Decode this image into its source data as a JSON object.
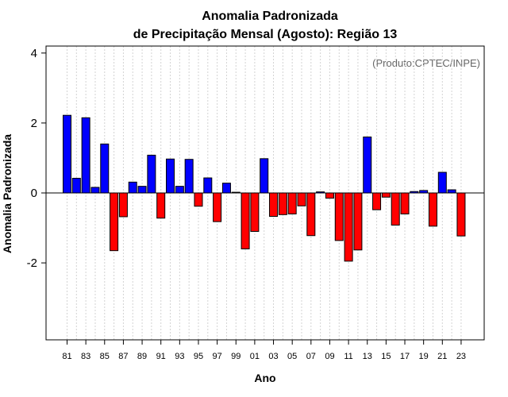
{
  "chart_data": {
    "type": "bar",
    "title": [
      "Anomalia Padronizada",
      "de Precipitação Mensal (Agosto): Região 13"
    ],
    "annotation": "(Produto:CPTEC/INPE)",
    "xlabel": "Ano",
    "ylabel": "Anomalia Padronizada",
    "ylim": [
      -4.2,
      4.2
    ],
    "yticks": [
      -2,
      0,
      2,
      4
    ],
    "ytick_labels": [
      "-2",
      "0",
      "2",
      "4"
    ],
    "categories": [
      "1981",
      "1982",
      "1983",
      "1984",
      "1985",
      "1986",
      "1987",
      "1988",
      "1989",
      "1990",
      "1991",
      "1992",
      "1993",
      "1994",
      "1995",
      "1996",
      "1997",
      "1998",
      "1999",
      "2000",
      "2001",
      "2002",
      "2003",
      "2004",
      "2005",
      "2006",
      "2007",
      "2008",
      "2009",
      "2010",
      "2011",
      "2012",
      "2013",
      "2014",
      "2015",
      "2016",
      "2017",
      "2018",
      "2019",
      "2020",
      "2021",
      "2022",
      "2023"
    ],
    "values": [
      2.22,
      0.42,
      2.15,
      0.16,
      1.4,
      -1.65,
      -0.68,
      0.31,
      0.19,
      1.08,
      -0.72,
      0.97,
      0.19,
      0.96,
      -0.38,
      0.43,
      -0.82,
      0.28,
      0.02,
      -1.6,
      -1.1,
      0.98,
      -0.67,
      -0.62,
      -0.6,
      -0.37,
      -1.22,
      0.03,
      -0.15,
      -1.36,
      -1.95,
      -1.63,
      1.6,
      -0.48,
      -0.12,
      -0.92,
      -0.6,
      0.04,
      0.07,
      -0.95,
      0.59,
      0.09,
      -1.23
    ],
    "xtick_labels": [
      "81",
      "83",
      "85",
      "87",
      "89",
      "91",
      "93",
      "95",
      "97",
      "99",
      "01",
      "03",
      "05",
      "07",
      "09",
      "11",
      "13",
      "15",
      "17",
      "19",
      "21",
      "23"
    ],
    "colors": {
      "positive": "#0000ff",
      "negative": "#ff0000",
      "outline": "#000000",
      "grid": "#d3d3d3"
    }
  }
}
